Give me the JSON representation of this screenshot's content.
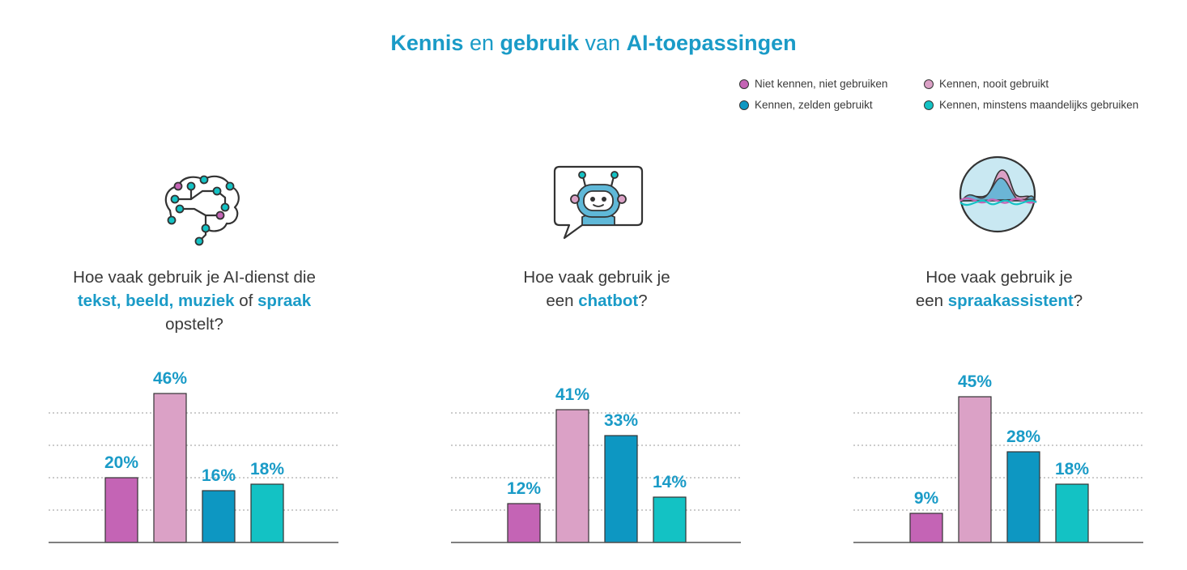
{
  "title": {
    "part1": "Kennis",
    "part2": " en ",
    "part3": "gebruik",
    "part4": " van ",
    "part5": "AI-toepassingen"
  },
  "legend": [
    {
      "label": "Niet kennen, niet gebruiken",
      "color": "#c464b5"
    },
    {
      "label": "Kennen, nooit gebruikt",
      "color": "#dba1c6"
    },
    {
      "label": "Kennen, zelden gebruikt",
      "color": "#0d97c2"
    },
    {
      "label": "Kennen, minstens maandelijks gebruiken",
      "color": "#13c2c4"
    }
  ],
  "panels": [
    {
      "icon": "brain-circuit-icon",
      "question": {
        "line1": "Hoe vaak gebruik je AI-dienst die",
        "line2_hl": "tekst, beeld, muziek",
        "line2_mid": " of ",
        "line2_hl2": "spraak",
        "line3": "opstelt?"
      }
    },
    {
      "icon": "chatbot-icon",
      "question": {
        "line1": "Hoe vaak gebruik je",
        "line2_pre": "een ",
        "line2_hl": "chatbot",
        "line2_post": "?"
      }
    },
    {
      "icon": "voice-wave-icon",
      "question": {
        "line1": "Hoe vaak gebruik je",
        "line2_pre": "een ",
        "line2_hl": "spraakassistent",
        "line2_post": "?"
      }
    }
  ],
  "chart_data": [
    {
      "type": "bar",
      "categories": [
        "Niet kennen, niet gebruiken",
        "Kennen, nooit gebruikt",
        "Kennen, zelden gebruikt",
        "Kennen, minstens maandelijks gebruiken"
      ],
      "values": [
        20,
        46,
        16,
        18
      ],
      "labels": [
        "20%",
        "46%",
        "16%",
        "18%"
      ],
      "ylim": [
        0,
        50
      ],
      "grid": true
    },
    {
      "type": "bar",
      "categories": [
        "Niet kennen, niet gebruiken",
        "Kennen, nooit gebruikt",
        "Kennen, zelden gebruikt",
        "Kennen, minstens maandelijks gebruiken"
      ],
      "values": [
        12,
        41,
        33,
        14
      ],
      "labels": [
        "12%",
        "41%",
        "33%",
        "14%"
      ],
      "ylim": [
        0,
        50
      ],
      "grid": true
    },
    {
      "type": "bar",
      "categories": [
        "Niet kennen, niet gebruiken",
        "Kennen, nooit gebruikt",
        "Kennen, zelden gebruikt",
        "Kennen, minstens maandelijks gebruiken"
      ],
      "values": [
        9,
        45,
        28,
        18
      ],
      "labels": [
        "9%",
        "45%",
        "28%",
        "18%"
      ],
      "ylim": [
        0,
        50
      ],
      "grid": true
    }
  ]
}
